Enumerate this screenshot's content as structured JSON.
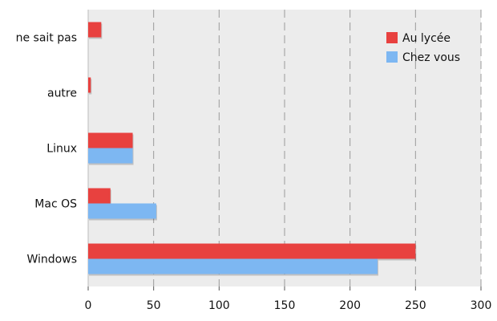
{
  "chart_data": {
    "type": "bar",
    "orientation": "horizontal",
    "categories": [
      "Windows",
      "Mac OS",
      "Linux",
      "autre",
      "ne sait pas"
    ],
    "series": [
      {
        "name": "Au lycée",
        "color": "#e8413f",
        "values": [
          250,
          17,
          34,
          2,
          10
        ]
      },
      {
        "name": "Chez vous",
        "color": "#7db7f2",
        "values": [
          221,
          52,
          34,
          0,
          0
        ]
      }
    ],
    "xlim": [
      0,
      300
    ],
    "xticks": [
      0,
      50,
      100,
      150,
      200,
      250,
      300
    ],
    "grid": "vertical dashed",
    "legend_position": "top-right",
    "plot_background": "#ececec"
  }
}
